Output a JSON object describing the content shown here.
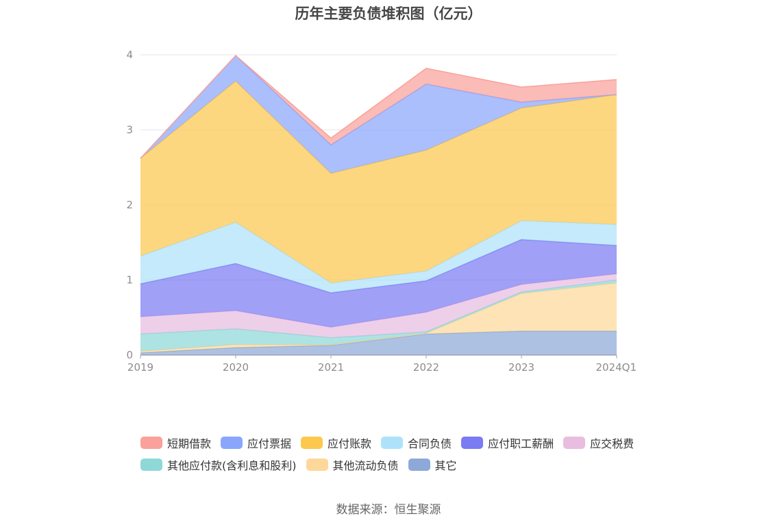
{
  "chart_data": {
    "type": "area",
    "stacked": true,
    "title": "历年主要负债堆积图（亿元）",
    "categories": [
      "2019",
      "2020",
      "2021",
      "2022",
      "2023",
      "2024Q1"
    ],
    "ylim": [
      0,
      4
    ],
    "yticks": [
      "0",
      "1",
      "2",
      "3",
      "4"
    ],
    "grid": true,
    "legend_position": "bottom",
    "series": [
      {
        "name": "其它",
        "color": "#8ea9d7",
        "values": [
          0.03,
          0.1,
          0.13,
          0.28,
          0.32,
          0.32
        ]
      },
      {
        "name": "其他流动负债",
        "color": "#fdd89a",
        "values": [
          0.02,
          0.04,
          0.01,
          0.01,
          0.5,
          0.64
        ]
      },
      {
        "name": "其他应付款(含利息和股利)",
        "color": "#8fd8d8",
        "values": [
          0.23,
          0.21,
          0.09,
          0.02,
          0.02,
          0.04
        ]
      },
      {
        "name": "应交税费",
        "color": "#e8bde0",
        "values": [
          0.23,
          0.24,
          0.14,
          0.26,
          0.1,
          0.08
        ]
      },
      {
        "name": "应付职工薪酬",
        "color": "#7b7bf3",
        "values": [
          0.44,
          0.63,
          0.46,
          0.42,
          0.6,
          0.38
        ]
      },
      {
        "name": "合同负债",
        "color": "#aee2fa",
        "values": [
          0.37,
          0.55,
          0.13,
          0.13,
          0.25,
          0.28
        ]
      },
      {
        "name": "应付账款",
        "color": "#fcc84d",
        "values": [
          1.3,
          1.88,
          1.46,
          1.61,
          1.5,
          1.73
        ]
      },
      {
        "name": "应付票据",
        "color": "#8aa6fc",
        "values": [
          0.0,
          0.34,
          0.38,
          0.88,
          0.08,
          0.0
        ]
      },
      {
        "name": "短期借款",
        "color": "#f9a19a",
        "values": [
          0.0,
          0.0,
          0.09,
          0.21,
          0.2,
          0.2
        ]
      }
    ]
  },
  "legend": [
    [
      "短期借款",
      "应付票据",
      "应付账款",
      "合同负债",
      "应付职工薪酬",
      "应交税费"
    ],
    [
      "其他应付款(含利息和股利)",
      "其他流动负债",
      "其它"
    ]
  ],
  "source": "数据来源：恒生聚源"
}
